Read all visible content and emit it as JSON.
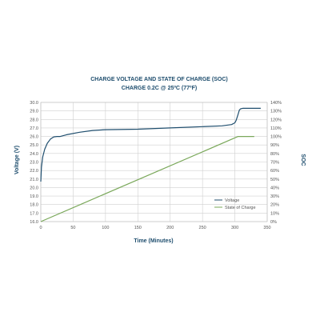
{
  "chart_data": {
    "type": "line",
    "title": "CHARGE VOLTAGE AND STATE OF CHARGE (SOC)",
    "subtitle": "CHARGE 0.2C @ 25ºC (77ºF)",
    "xlabel": "Time (Minutes)",
    "ylabel": "Voltage (V)",
    "y2label": "SOC",
    "xlim": [
      0,
      350
    ],
    "ylim": [
      16.0,
      30.0
    ],
    "y2lim": [
      0,
      140
    ],
    "x_ticks": [
      "0",
      "50",
      "100",
      "150",
      "200",
      "250",
      "300",
      "350"
    ],
    "y_ticks": [
      "16.0",
      "17.0",
      "18.0",
      "19.0",
      "20.0",
      "21.0",
      "22.0",
      "23.0",
      "24.0",
      "25.0",
      "26.0",
      "27.0",
      "28.0",
      "29.0",
      "30.0"
    ],
    "y2_ticks": [
      "0%",
      "10%",
      "20%",
      "30%",
      "40%",
      "50%",
      "60%",
      "70%",
      "80%",
      "90%",
      "100%",
      "110%",
      "120%",
      "130%",
      "140%"
    ],
    "grid": true,
    "legend_position": "bottom-right",
    "series": [
      {
        "name": "Voltage",
        "color": "#1f4e6e",
        "axis": "left",
        "x": [
          0,
          1,
          3,
          6,
          10,
          15,
          20,
          25,
          30,
          40,
          60,
          80,
          100,
          150,
          200,
          250,
          280,
          295,
          300,
          302,
          305,
          307,
          309,
          312,
          320,
          330,
          340
        ],
        "y": [
          20.7,
          22.4,
          23.6,
          24.5,
          25.2,
          25.7,
          25.95,
          26.0,
          26.0,
          26.2,
          26.5,
          26.7,
          26.8,
          26.85,
          27.0,
          27.15,
          27.25,
          27.4,
          27.6,
          27.9,
          28.6,
          29.1,
          29.25,
          29.3,
          29.3,
          29.3,
          29.3
        ]
      },
      {
        "name": "State of Charge",
        "color": "#7aa85a",
        "axis": "right",
        "x": [
          0,
          305,
          320,
          330
        ],
        "y": [
          0,
          100,
          100,
          100
        ]
      }
    ]
  }
}
